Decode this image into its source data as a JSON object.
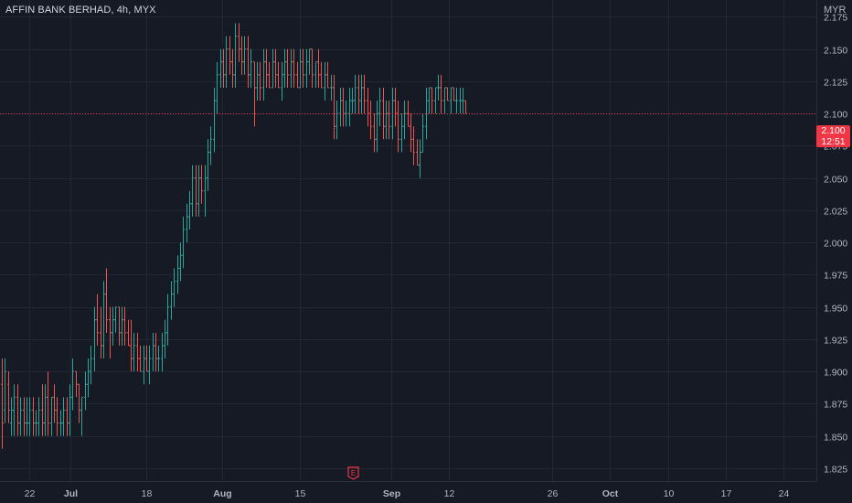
{
  "header": {
    "symbol_title": "AFFIN BANK BERHAD, 4h, MYX",
    "currency": "MYR"
  },
  "price_badge": {
    "price": "2.100",
    "countdown": "12:51",
    "color": "#f23645"
  },
  "earnings_marker": {
    "label": "E",
    "icon": "earnings-icon"
  },
  "colors": {
    "background": "#161a25",
    "grid": "#232733",
    "up": "#26a69a",
    "down": "#ef5350",
    "text": "#b2b5be"
  },
  "chart_data": {
    "type": "ohlc",
    "y_ticks": [
      "2.175",
      "2.150",
      "2.125",
      "2.100",
      "2.075",
      "2.050",
      "2.025",
      "2.000",
      "1.975",
      "1.950",
      "1.925",
      "1.900",
      "1.875",
      "1.850",
      "1.825"
    ],
    "ylim": [
      1.815,
      2.188
    ],
    "x_ticks": [
      {
        "label": "22",
        "bold": false
      },
      {
        "label": "Jul",
        "bold": true
      },
      {
        "label": "18",
        "bold": false
      },
      {
        "label": "Aug",
        "bold": true
      },
      {
        "label": "15",
        "bold": false
      },
      {
        "label": "Sep",
        "bold": true
      },
      {
        "label": "12",
        "bold": false
      },
      {
        "label": "26",
        "bold": false
      },
      {
        "label": "Oct",
        "bold": true
      },
      {
        "label": "10",
        "bold": false
      },
      {
        "label": "17",
        "bold": false
      },
      {
        "label": "24",
        "bold": false
      }
    ],
    "last_price": 2.1,
    "grid": true,
    "bars": [
      [
        1.89,
        1.91,
        1.84,
        1.86
      ],
      [
        1.87,
        1.91,
        1.86,
        1.9
      ],
      [
        1.89,
        1.9,
        1.86,
        1.87
      ],
      [
        1.86,
        1.88,
        1.85,
        1.87
      ],
      [
        1.87,
        1.89,
        1.85,
        1.88
      ],
      [
        1.88,
        1.89,
        1.85,
        1.86
      ],
      [
        1.86,
        1.88,
        1.85,
        1.87
      ],
      [
        1.87,
        1.88,
        1.85,
        1.86
      ],
      [
        1.86,
        1.88,
        1.85,
        1.86
      ],
      [
        1.86,
        1.88,
        1.85,
        1.87
      ],
      [
        1.87,
        1.88,
        1.85,
        1.86
      ],
      [
        1.86,
        1.87,
        1.85,
        1.86
      ],
      [
        1.86,
        1.88,
        1.85,
        1.87
      ],
      [
        1.87,
        1.89,
        1.85,
        1.86
      ],
      [
        1.86,
        1.89,
        1.85,
        1.88
      ],
      [
        1.88,
        1.9,
        1.85,
        1.86
      ],
      [
        1.86,
        1.88,
        1.85,
        1.88
      ],
      [
        1.88,
        1.89,
        1.86,
        1.87
      ],
      [
        1.87,
        1.88,
        1.85,
        1.86
      ],
      [
        1.86,
        1.87,
        1.85,
        1.86
      ],
      [
        1.86,
        1.88,
        1.85,
        1.87
      ],
      [
        1.87,
        1.88,
        1.85,
        1.86
      ],
      [
        1.86,
        1.89,
        1.85,
        1.88
      ],
      [
        1.88,
        1.91,
        1.87,
        1.9
      ],
      [
        1.9,
        1.9,
        1.88,
        1.89
      ],
      [
        1.89,
        1.89,
        1.86,
        1.87
      ],
      [
        1.87,
        1.88,
        1.85,
        1.88
      ],
      [
        1.88,
        1.9,
        1.87,
        1.89
      ],
      [
        1.89,
        1.91,
        1.88,
        1.9
      ],
      [
        1.9,
        1.92,
        1.89,
        1.91
      ],
      [
        1.91,
        1.95,
        1.9,
        1.94
      ],
      [
        1.94,
        1.96,
        1.92,
        1.93
      ],
      [
        1.93,
        1.95,
        1.91,
        1.92
      ],
      [
        1.92,
        1.97,
        1.91,
        1.96
      ],
      [
        1.96,
        1.98,
        1.93,
        1.94
      ],
      [
        1.94,
        1.95,
        1.91,
        1.93
      ],
      [
        1.93,
        1.95,
        1.92,
        1.94
      ],
      [
        1.94,
        1.95,
        1.93,
        1.95
      ],
      [
        1.95,
        1.95,
        1.92,
        1.93
      ],
      [
        1.93,
        1.95,
        1.92,
        1.94
      ],
      [
        1.94,
        1.95,
        1.92,
        1.93
      ],
      [
        1.93,
        1.94,
        1.92,
        1.92
      ],
      [
        1.92,
        1.94,
        1.9,
        1.91
      ],
      [
        1.91,
        1.93,
        1.9,
        1.92
      ],
      [
        1.92,
        1.93,
        1.9,
        1.91
      ],
      [
        1.91,
        1.92,
        1.9,
        1.9
      ],
      [
        1.9,
        1.92,
        1.89,
        1.91
      ],
      [
        1.91,
        1.92,
        1.9,
        1.9
      ],
      [
        1.9,
        1.92,
        1.89,
        1.91
      ],
      [
        1.91,
        1.93,
        1.9,
        1.92
      ],
      [
        1.92,
        1.93,
        1.9,
        1.91
      ],
      [
        1.91,
        1.92,
        1.9,
        1.91
      ],
      [
        1.91,
        1.93,
        1.9,
        1.92
      ],
      [
        1.92,
        1.94,
        1.91,
        1.93
      ],
      [
        1.93,
        1.96,
        1.92,
        1.95
      ],
      [
        1.95,
        1.97,
        1.94,
        1.96
      ],
      [
        1.96,
        1.98,
        1.95,
        1.97
      ],
      [
        1.97,
        1.99,
        1.96,
        1.98
      ],
      [
        1.98,
        2.0,
        1.97,
        1.99
      ],
      [
        1.99,
        2.02,
        1.98,
        2.01
      ],
      [
        2.01,
        2.03,
        2.0,
        2.02
      ],
      [
        2.02,
        2.04,
        2.01,
        2.03
      ],
      [
        2.03,
        2.06,
        2.02,
        2.05
      ],
      [
        2.05,
        2.06,
        2.02,
        2.03
      ],
      [
        2.03,
        2.06,
        2.02,
        2.05
      ],
      [
        2.05,
        2.06,
        2.03,
        2.04
      ],
      [
        2.04,
        2.06,
        2.02,
        2.05
      ],
      [
        2.05,
        2.08,
        2.04,
        2.07
      ],
      [
        2.07,
        2.09,
        2.06,
        2.08
      ],
      [
        2.08,
        2.12,
        2.07,
        2.11
      ],
      [
        2.11,
        2.14,
        2.1,
        2.13
      ],
      [
        2.13,
        2.15,
        2.12,
        2.14
      ],
      [
        2.14,
        2.15,
        2.12,
        2.13
      ],
      [
        2.13,
        2.16,
        2.12,
        2.15
      ],
      [
        2.15,
        2.16,
        2.13,
        2.14
      ],
      [
        2.14,
        2.15,
        2.12,
        2.13
      ],
      [
        2.13,
        2.17,
        2.12,
        2.16
      ],
      [
        2.16,
        2.17,
        2.14,
        2.15
      ],
      [
        2.15,
        2.16,
        2.13,
        2.14
      ],
      [
        2.14,
        2.16,
        2.13,
        2.15
      ],
      [
        2.15,
        2.16,
        2.12,
        2.13
      ],
      [
        2.13,
        2.15,
        2.12,
        2.14
      ],
      [
        2.14,
        2.14,
        2.09,
        2.12
      ],
      [
        2.12,
        2.14,
        2.11,
        2.13
      ],
      [
        2.13,
        2.14,
        2.11,
        2.12
      ],
      [
        2.12,
        2.15,
        2.11,
        2.14
      ],
      [
        2.14,
        2.15,
        2.12,
        2.13
      ],
      [
        2.13,
        2.14,
        2.12,
        2.12
      ],
      [
        2.12,
        2.15,
        2.12,
        2.14
      ],
      [
        2.14,
        2.15,
        2.12,
        2.13
      ],
      [
        2.13,
        2.14,
        2.12,
        2.12
      ],
      [
        2.12,
        2.14,
        2.11,
        2.13
      ],
      [
        2.13,
        2.15,
        2.12,
        2.14
      ],
      [
        2.14,
        2.15,
        2.12,
        2.13
      ],
      [
        2.13,
        2.15,
        2.12,
        2.14
      ],
      [
        2.14,
        2.15,
        2.12,
        2.13
      ],
      [
        2.13,
        2.14,
        2.12,
        2.12
      ],
      [
        2.12,
        2.15,
        2.12,
        2.14
      ],
      [
        2.14,
        2.15,
        2.12,
        2.13
      ],
      [
        2.13,
        2.15,
        2.12,
        2.14
      ],
      [
        2.14,
        2.15,
        2.13,
        2.15
      ],
      [
        2.15,
        2.15,
        2.12,
        2.13
      ],
      [
        2.13,
        2.14,
        2.12,
        2.14
      ],
      [
        2.14,
        2.15,
        2.12,
        2.13
      ],
      [
        2.13,
        2.14,
        2.12,
        2.12
      ],
      [
        2.12,
        2.14,
        2.11,
        2.13
      ],
      [
        2.13,
        2.14,
        2.12,
        2.12
      ],
      [
        2.12,
        2.13,
        2.11,
        2.12
      ],
      [
        2.12,
        2.13,
        2.08,
        2.09
      ],
      [
        2.09,
        2.11,
        2.08,
        2.1
      ],
      [
        2.1,
        2.12,
        2.09,
        2.11
      ],
      [
        2.11,
        2.12,
        2.09,
        2.1
      ],
      [
        2.1,
        2.11,
        2.09,
        2.1
      ],
      [
        2.1,
        2.12,
        2.09,
        2.11
      ],
      [
        2.11,
        2.12,
        2.1,
        2.11
      ],
      [
        2.11,
        2.13,
        2.1,
        2.12
      ],
      [
        2.12,
        2.13,
        2.1,
        2.11
      ],
      [
        2.11,
        2.13,
        2.1,
        2.12
      ],
      [
        2.12,
        2.13,
        2.1,
        2.11
      ],
      [
        2.11,
        2.12,
        2.09,
        2.1
      ],
      [
        2.1,
        2.11,
        2.08,
        2.09
      ],
      [
        2.09,
        2.1,
        2.07,
        2.08
      ],
      [
        2.08,
        2.11,
        2.07,
        2.1
      ],
      [
        2.1,
        2.12,
        2.09,
        2.11
      ],
      [
        2.11,
        2.12,
        2.08,
        2.09
      ],
      [
        2.09,
        2.11,
        2.08,
        2.1
      ],
      [
        2.1,
        2.11,
        2.08,
        2.09
      ],
      [
        2.09,
        2.12,
        2.08,
        2.11
      ],
      [
        2.11,
        2.12,
        2.09,
        2.1
      ],
      [
        2.1,
        2.11,
        2.07,
        2.08
      ],
      [
        2.08,
        2.1,
        2.07,
        2.09
      ],
      [
        2.09,
        2.11,
        2.08,
        2.1
      ],
      [
        2.1,
        2.11,
        2.09,
        2.09
      ],
      [
        2.09,
        2.1,
        2.07,
        2.08
      ],
      [
        2.08,
        2.09,
        2.06,
        2.07
      ],
      [
        2.07,
        2.08,
        2.06,
        2.06
      ],
      [
        2.06,
        2.08,
        2.05,
        2.07
      ],
      [
        2.07,
        2.1,
        2.07,
        2.09
      ],
      [
        2.09,
        2.12,
        2.08,
        2.11
      ],
      [
        2.11,
        2.12,
        2.1,
        2.12
      ],
      [
        2.12,
        2.12,
        2.1,
        2.11
      ],
      [
        2.11,
        2.12,
        2.1,
        2.12
      ],
      [
        2.12,
        2.13,
        2.11,
        2.12
      ],
      [
        2.12,
        2.13,
        2.1,
        2.11
      ],
      [
        2.11,
        2.12,
        2.1,
        2.12
      ],
      [
        2.12,
        2.12,
        2.11,
        2.11
      ],
      [
        2.11,
        2.12,
        2.1,
        2.12
      ],
      [
        2.12,
        2.12,
        2.11,
        2.11
      ],
      [
        2.11,
        2.12,
        2.1,
        2.11
      ],
      [
        2.11,
        2.12,
        2.1,
        2.11
      ],
      [
        2.11,
        2.12,
        2.1,
        2.11
      ],
      [
        2.11,
        2.11,
        2.1,
        2.1
      ]
    ]
  }
}
